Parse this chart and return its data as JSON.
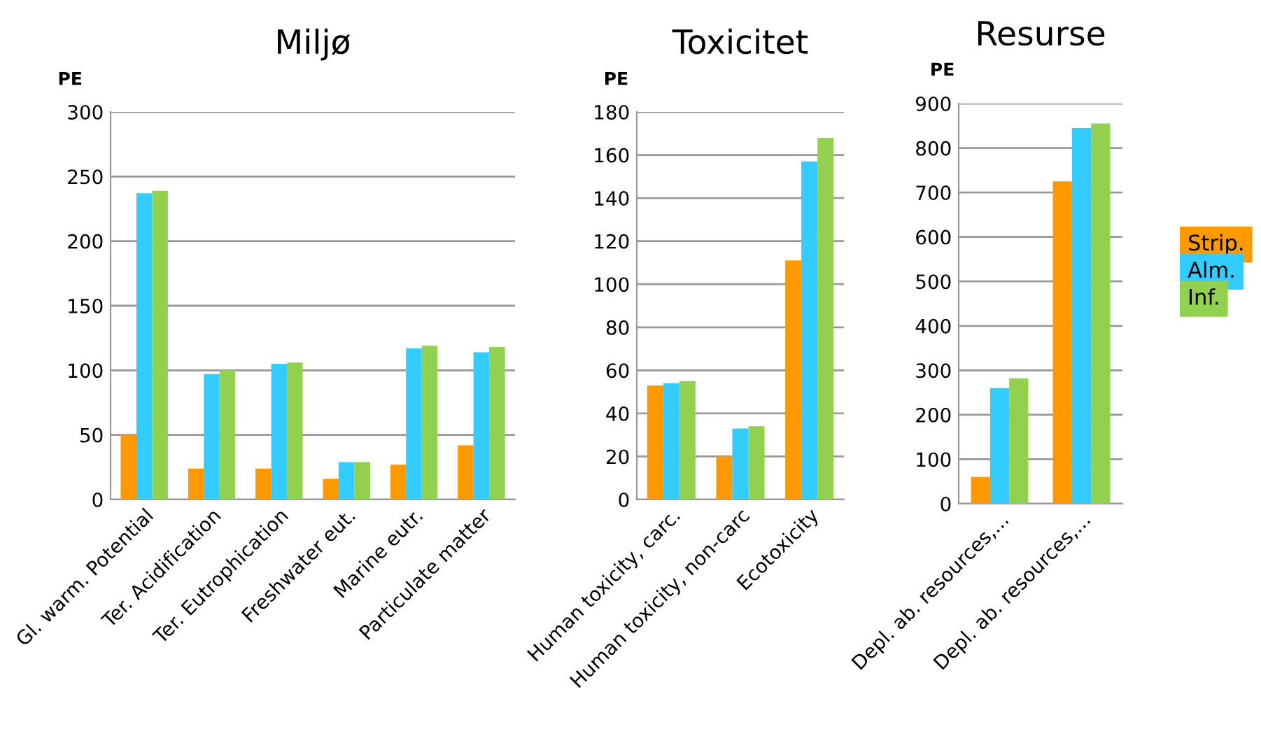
{
  "chart_data": [
    {
      "type": "bar",
      "title": "Miljø",
      "ylabel": "PE",
      "categories": [
        "Gl. warm. Potential",
        "Ter. Acidification",
        "Ter. Eutrophication",
        "Freshwater eut.",
        "Marine eutr.",
        "Particulate matter"
      ],
      "series": [
        {
          "color": "#ff9900",
          "values": [
            50,
            24,
            24,
            16,
            27,
            42
          ]
        },
        {
          "color": "#33ccff",
          "values": [
            237,
            97,
            105,
            29,
            117,
            114
          ]
        },
        {
          "color": "#92d050",
          "values": [
            239,
            100,
            106,
            29,
            119,
            118
          ]
        }
      ],
      "ylim": [
        0,
        300
      ],
      "yticks": [
        0,
        50,
        100,
        150,
        200,
        250,
        300
      ],
      "grid": "y"
    },
    {
      "type": "bar",
      "title": "Toxicitet",
      "ylabel": "PE",
      "categories": [
        "Human toxicity, carc.",
        "Human toxicity, non-carc",
        "Ecotoxicity"
      ],
      "series": [
        {
          "color": "#ff9900",
          "values": [
            53,
            20,
            111
          ]
        },
        {
          "color": "#33ccff",
          "values": [
            54,
            33,
            157
          ]
        },
        {
          "color": "#92d050",
          "values": [
            55,
            34,
            168
          ]
        }
      ],
      "ylim": [
        0,
        180
      ],
      "yticks": [
        0,
        20,
        40,
        60,
        80,
        100,
        120,
        140,
        160,
        180
      ],
      "grid": "y"
    },
    {
      "type": "bar",
      "title": "Resurse",
      "ylabel": "PE",
      "categories": [
        "Depl. ab. resources,...",
        "Depl. ab. resources,..."
      ],
      "series": [
        {
          "name": "Strip.",
          "color": "#ff9900",
          "values": [
            60,
            725
          ]
        },
        {
          "name": "Alm.",
          "color": "#33ccff",
          "values": [
            260,
            845
          ]
        },
        {
          "name": "Inf.",
          "color": "#92d050",
          "values": [
            282,
            855
          ]
        }
      ],
      "ylim": [
        0,
        900
      ],
      "yticks": [
        0,
        100,
        200,
        300,
        400,
        500,
        600,
        700,
        800,
        900
      ],
      "grid": "y",
      "legend": "right"
    }
  ]
}
